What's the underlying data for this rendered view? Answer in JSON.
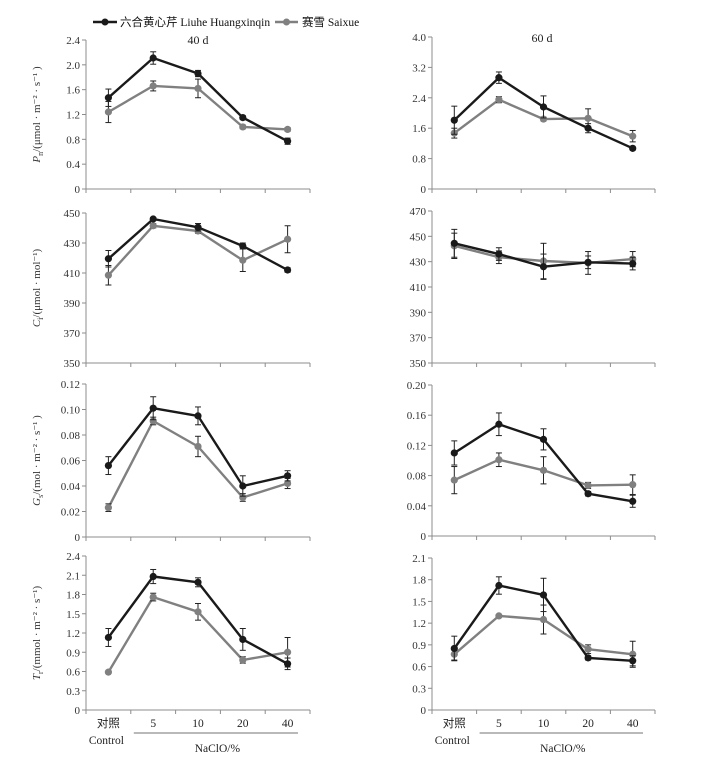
{
  "legend": [
    {
      "label": "六合黄心芹 Liuhe Huangxinqin",
      "color": "#1a1a1a"
    },
    {
      "label": "赛雪 Saixue",
      "color": "#808080"
    }
  ],
  "x_axis": {
    "categories": [
      "对照",
      "5",
      "10",
      "20",
      "40"
    ],
    "control_en": "Control",
    "xlabel": "NaClO/%"
  },
  "chart_data": [
    {
      "type": "line",
      "title": "40 d",
      "ylabel": {
        "symbol": "P",
        "sub": "n",
        "unit": "/(μmol · m⁻² · s⁻¹ )"
      },
      "ylim": [
        0,
        2.4
      ],
      "yticks": [
        "0",
        "0.4",
        "0.8",
        "1.2",
        "1.6",
        "2.0",
        "2.4"
      ],
      "categories": [
        "对照 Control",
        "5",
        "10",
        "20",
        "40"
      ],
      "series": [
        {
          "name": "六合黄心芹 Liuhe Huangxinqin",
          "values": [
            1.47,
            2.11,
            1.86,
            1.15,
            0.77
          ],
          "errors": [
            0.14,
            0.1,
            0.05,
            0.03,
            0.05
          ]
        },
        {
          "name": "赛雪 Saixue",
          "values": [
            1.24,
            1.66,
            1.62,
            1.0,
            0.96
          ],
          "errors": [
            0.17,
            0.08,
            0.15,
            0.03,
            0.03
          ]
        }
      ]
    },
    {
      "type": "line",
      "title": "60 d",
      "ylim": [
        0,
        4.0
      ],
      "yticks": [
        "0",
        "0.8",
        "1.6",
        "2.4",
        "3.2",
        "4.0"
      ],
      "categories": [
        "对照 Control",
        "5",
        "10",
        "20",
        "40"
      ],
      "series": [
        {
          "name": "六合黄心芹 Liuhe Huangxinqin",
          "values": [
            1.81,
            2.93,
            2.16,
            1.6,
            1.07
          ],
          "errors": [
            0.37,
            0.15,
            0.29,
            0.12,
            0.04
          ]
        },
        {
          "name": "赛雪 Saixue",
          "values": [
            1.47,
            2.35,
            1.84,
            1.86,
            1.39
          ],
          "errors": [
            0.13,
            0.08,
            0.05,
            0.25,
            0.15
          ]
        }
      ]
    },
    {
      "type": "line",
      "title": "",
      "ylabel": {
        "symbol": "C",
        "sub": "i",
        "unit": "/(μmol · mol⁻¹)"
      },
      "ylim": [
        350,
        450
      ],
      "yticks": [
        "350",
        "370",
        "390",
        "410",
        "430",
        "450"
      ],
      "categories": [
        "对照 Control",
        "5",
        "10",
        "20",
        "40"
      ],
      "series": [
        {
          "name": "六合黄心芹 Liuhe Huangxinqin",
          "values": [
            419.5,
            446,
            440.5,
            428,
            412
          ],
          "errors": [
            5.5,
            1,
            2.5,
            2,
            1.5
          ]
        },
        {
          "name": "赛雪 Saixue",
          "values": [
            408.5,
            441.5,
            438,
            418.5,
            432.5
          ],
          "errors": [
            6.5,
            1.5,
            1.5,
            7.5,
            9
          ]
        }
      ]
    },
    {
      "type": "line",
      "title": "",
      "ylim": [
        350,
        470
      ],
      "yticks": [
        "350",
        "370",
        "390",
        "410",
        "430",
        "450",
        "470"
      ],
      "categories": [
        "对照 Control",
        "5",
        "10",
        "20",
        "40"
      ],
      "series": [
        {
          "name": "六合黄心芹 Liuhe Huangxinqin",
          "values": [
            444.5,
            436,
            426,
            429.5,
            428.5
          ],
          "errors": [
            11,
            5,
            10,
            5,
            5
          ]
        },
        {
          "name": "赛雪 Saixue",
          "values": [
            442.5,
            433.5,
            430.5,
            429,
            432
          ],
          "errors": [
            10,
            5,
            14,
            9,
            6
          ]
        }
      ]
    },
    {
      "type": "line",
      "title": "",
      "ylabel": {
        "symbol": "G",
        "sub": "s",
        "unit": "/(mol · m⁻² · s⁻¹ )"
      },
      "ylim": [
        0,
        0.12
      ],
      "yticks": [
        "0",
        "0.02",
        "0.04",
        "0.06",
        "0.08",
        "0.10",
        "0.12"
      ],
      "categories": [
        "对照 Control",
        "5",
        "10",
        "20",
        "40"
      ],
      "series": [
        {
          "name": "六合黄心芹 Liuhe Huangxinqin",
          "values": [
            0.056,
            0.101,
            0.095,
            0.04,
            0.048
          ],
          "errors": [
            0.007,
            0.009,
            0.007,
            0.008,
            0.004
          ]
        },
        {
          "name": "赛雪 Saixue",
          "values": [
            0.023,
            0.091,
            0.071,
            0.031,
            0.042
          ],
          "errors": [
            0.003,
            0.003,
            0.008,
            0.003,
            0.004
          ]
        }
      ]
    },
    {
      "type": "line",
      "title": "",
      "ylim": [
        0,
        0.2
      ],
      "yticks": [
        "0",
        "0.04",
        "0.08",
        "0.12",
        "0.16",
        "0.20"
      ],
      "categories": [
        "对照 Control",
        "5",
        "10",
        "20",
        "40"
      ],
      "series": [
        {
          "name": "六合黄心芹 Liuhe Huangxinqin",
          "values": [
            0.11,
            0.148,
            0.128,
            0.056,
            0.046
          ],
          "errors": [
            0.016,
            0.015,
            0.014,
            0.003,
            0.008
          ]
        },
        {
          "name": "赛雪 Saixue",
          "values": [
            0.074,
            0.101,
            0.087,
            0.067,
            0.068
          ],
          "errors": [
            0.018,
            0.009,
            0.018,
            0.004,
            0.013
          ]
        }
      ]
    },
    {
      "type": "line",
      "title": "",
      "ylabel": {
        "symbol": "T",
        "sub": "r",
        "unit": "/(mmol · m⁻² · s⁻¹)"
      },
      "ylim": [
        0,
        2.4
      ],
      "yticks": [
        "0",
        "0.3",
        "0.6",
        "0.9",
        "1.2",
        "1.5",
        "1.8",
        "2.1",
        "2.4"
      ],
      "categories": [
        "对照 Control",
        "5",
        "10",
        "20",
        "40"
      ],
      "series": [
        {
          "name": "六合黄心芹 Liuhe Huangxinqin",
          "values": [
            1.13,
            2.08,
            1.99,
            1.1,
            0.72
          ],
          "errors": [
            0.14,
            0.11,
            0.07,
            0.17,
            0.09
          ]
        },
        {
          "name": "赛雪 Saixue",
          "values": [
            0.59,
            1.76,
            1.53,
            0.78,
            0.9
          ],
          "errors": [
            0.02,
            0.06,
            0.13,
            0.05,
            0.23
          ]
        }
      ]
    },
    {
      "type": "line",
      "title": "",
      "ylim": [
        0,
        2.1
      ],
      "yticks": [
        "0",
        "0.3",
        "0.6",
        "0.9",
        "1.2",
        "1.5",
        "1.8",
        "2.1"
      ],
      "categories": [
        "对照 Control",
        "5",
        "10",
        "20",
        "40"
      ],
      "series": [
        {
          "name": "六合黄心芹 Liuhe Huangxinqin",
          "values": [
            0.85,
            1.72,
            1.59,
            0.72,
            0.68
          ],
          "errors": [
            0.17,
            0.12,
            0.23,
            0.03,
            0.07
          ]
        },
        {
          "name": "赛雪 Saixue",
          "values": [
            0.77,
            1.3,
            1.25,
            0.84,
            0.77
          ],
          "errors": [
            0.08,
            0.02,
            0.2,
            0.06,
            0.18
          ]
        }
      ]
    }
  ]
}
